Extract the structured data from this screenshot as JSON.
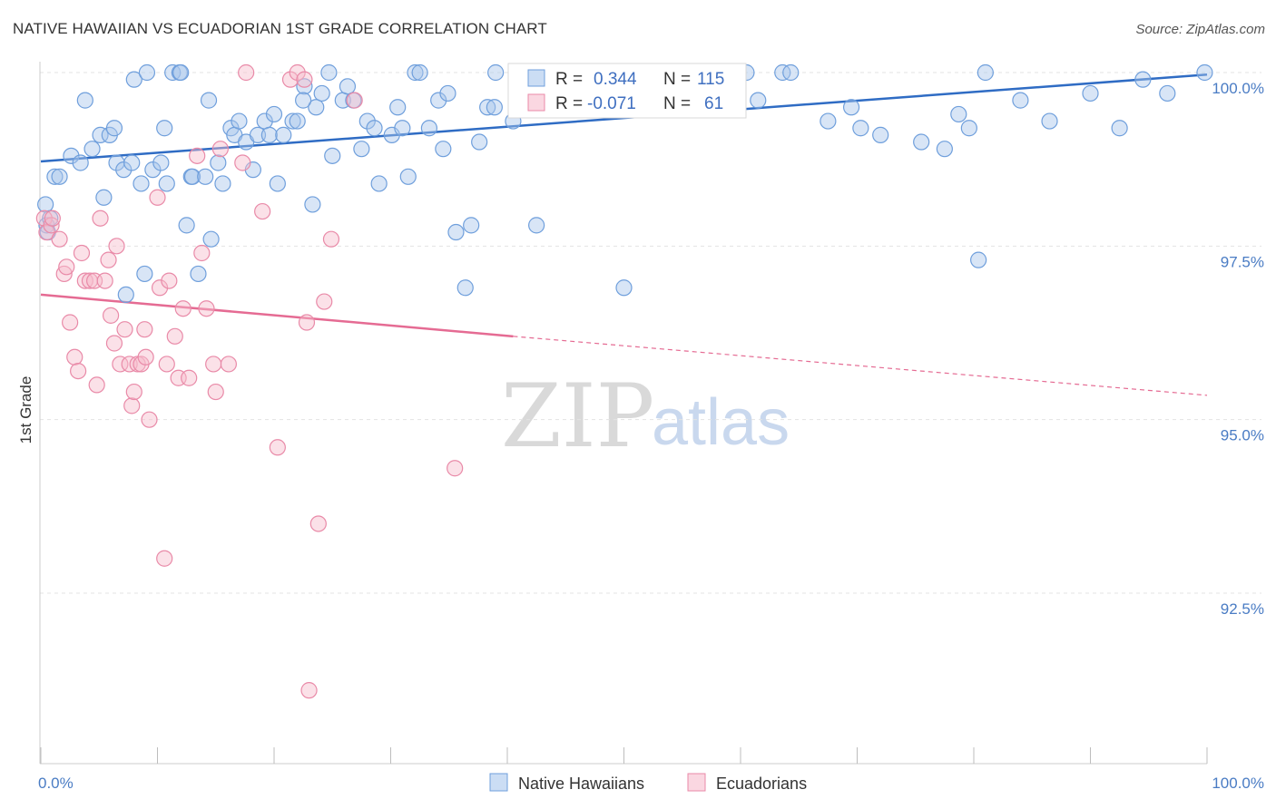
{
  "title": "NATIVE HAWAIIAN VS ECUADORIAN 1ST GRADE CORRELATION CHART",
  "source": "Source: ZipAtlas.com",
  "watermark": {
    "part1": "ZIP",
    "part2": "atlas"
  },
  "colors": {
    "blue": "#a9c6ec",
    "blue_stroke": "#6f9fdc",
    "blue_line": "#2f6cc4",
    "pink": "#f6bccd",
    "pink_stroke": "#e98aa8",
    "pink_line": "#e56b93",
    "tick_text": "#4a7cc4"
  },
  "legend": {
    "row1": {
      "r_label": "R =",
      "r_value": "0.344",
      "n_label": "N =",
      "n_value": "115"
    },
    "row2": {
      "r_label": "R =",
      "r_value": "-0.071",
      "n_label": "N =",
      "n_value": "61"
    }
  },
  "bottom_legend": [
    "Native Hawaiians",
    "Ecuadorians"
  ],
  "chart_data": {
    "type": "scatter",
    "xlabel": "",
    "ylabel": "1st Grade",
    "xlim": [
      0,
      100
    ],
    "ylim": [
      90.2,
      100.4
    ],
    "x_tick_labels": [
      "0.0%",
      "100.0%"
    ],
    "y_ticks": [
      92.5,
      95.0,
      97.5,
      100.0
    ],
    "y_tick_labels": [
      "92.5%",
      "95.0%",
      "97.5%",
      "100.0%"
    ],
    "grid": true,
    "series": [
      {
        "name": "Native Hawaiians",
        "trend": {
          "x": [
            0,
            100
          ],
          "y": [
            98.72,
            99.97
          ]
        },
        "points": [
          [
            0.4,
            98.1
          ],
          [
            0.5,
            97.8
          ],
          [
            0.8,
            97.9
          ],
          [
            1.2,
            98.5
          ],
          [
            1.6,
            98.5
          ],
          [
            2.6,
            98.8
          ],
          [
            3.4,
            98.7
          ],
          [
            3.8,
            99.6
          ],
          [
            4.4,
            98.9
          ],
          [
            5.1,
            99.1
          ],
          [
            5.4,
            98.2
          ],
          [
            5.9,
            99.1
          ],
          [
            6.5,
            98.7
          ],
          [
            7.1,
            98.6
          ],
          [
            7.3,
            96.8
          ],
          [
            7.8,
            98.7
          ],
          [
            8.0,
            99.9
          ],
          [
            8.6,
            98.4
          ],
          [
            8.9,
            97.1
          ],
          [
            9.1,
            100.0
          ],
          [
            9.6,
            98.6
          ],
          [
            10.3,
            98.7
          ],
          [
            10.6,
            99.2
          ],
          [
            10.8,
            98.4
          ],
          [
            11.3,
            100.0
          ],
          [
            11.9,
            100.0
          ],
          [
            12.0,
            100.0
          ],
          [
            12.5,
            97.8
          ],
          [
            12.9,
            98.5
          ],
          [
            13.0,
            98.5
          ],
          [
            13.5,
            97.1
          ],
          [
            14.1,
            98.5
          ],
          [
            14.4,
            99.6
          ],
          [
            14.6,
            97.6
          ],
          [
            15.2,
            98.7
          ],
          [
            15.6,
            98.4
          ],
          [
            16.3,
            99.2
          ],
          [
            16.6,
            99.1
          ],
          [
            17.0,
            99.3
          ],
          [
            17.6,
            99.0
          ],
          [
            18.2,
            98.6
          ],
          [
            18.6,
            99.1
          ],
          [
            19.2,
            99.3
          ],
          [
            19.6,
            99.1
          ],
          [
            20.3,
            98.4
          ],
          [
            20.8,
            99.1
          ],
          [
            21.6,
            99.3
          ],
          [
            22.0,
            99.3
          ],
          [
            22.6,
            99.8
          ],
          [
            23.3,
            98.1
          ],
          [
            23.6,
            99.5
          ],
          [
            24.1,
            99.7
          ],
          [
            24.7,
            100.0
          ],
          [
            25.0,
            98.8
          ],
          [
            25.9,
            99.6
          ],
          [
            26.3,
            99.8
          ],
          [
            26.8,
            99.6
          ],
          [
            27.5,
            98.9
          ],
          [
            28.0,
            99.3
          ],
          [
            28.6,
            99.2
          ],
          [
            29.0,
            98.4
          ],
          [
            30.1,
            99.1
          ],
          [
            30.6,
            99.5
          ],
          [
            31.0,
            99.2
          ],
          [
            31.5,
            98.5
          ],
          [
            32.1,
            100.0
          ],
          [
            32.5,
            100.0
          ],
          [
            33.3,
            99.2
          ],
          [
            34.1,
            99.6
          ],
          [
            34.5,
            98.9
          ],
          [
            34.9,
            99.7
          ],
          [
            35.6,
            97.7
          ],
          [
            36.4,
            96.9
          ],
          [
            36.9,
            97.8
          ],
          [
            37.6,
            99.0
          ],
          [
            38.3,
            99.5
          ],
          [
            38.9,
            99.5
          ],
          [
            39.0,
            100.0
          ],
          [
            40.5,
            99.3
          ],
          [
            41.5,
            99.9
          ],
          [
            42.5,
            97.8
          ],
          [
            43.0,
            100.0
          ],
          [
            44.5,
            99.7
          ],
          [
            46.5,
            100.0
          ],
          [
            47.0,
            99.6
          ],
          [
            50.0,
            96.9
          ],
          [
            51.0,
            100.0
          ],
          [
            53.0,
            100.0
          ],
          [
            55.6,
            100.0
          ],
          [
            57.2,
            100.0
          ],
          [
            60.5,
            100.0
          ],
          [
            61.5,
            99.6
          ],
          [
            63.6,
            100.0
          ],
          [
            64.3,
            100.0
          ],
          [
            67.5,
            99.3
          ],
          [
            69.5,
            99.5
          ],
          [
            70.3,
            99.2
          ],
          [
            72.0,
            99.1
          ],
          [
            75.5,
            99.0
          ],
          [
            77.5,
            98.9
          ],
          [
            78.7,
            99.4
          ],
          [
            79.6,
            99.2
          ],
          [
            80.4,
            97.3
          ],
          [
            81.0,
            100.0
          ],
          [
            84.0,
            99.6
          ],
          [
            86.5,
            99.3
          ],
          [
            90.0,
            99.7
          ],
          [
            92.5,
            99.2
          ],
          [
            94.5,
            99.9
          ],
          [
            96.6,
            99.7
          ],
          [
            99.8,
            100.0
          ],
          [
            0.6,
            97.7
          ],
          [
            6.3,
            99.2
          ],
          [
            20.0,
            99.4
          ],
          [
            22.5,
            99.6
          ]
        ]
      },
      {
        "name": "Ecuadorians",
        "trend": {
          "x": [
            0,
            40.5
          ],
          "y": [
            96.8,
            96.2
          ],
          "dashed_to": {
            "x": 100,
            "y": 95.35
          }
        },
        "points": [
          [
            0.3,
            97.9
          ],
          [
            0.5,
            97.7
          ],
          [
            0.9,
            97.8
          ],
          [
            1.0,
            97.9
          ],
          [
            1.6,
            97.6
          ],
          [
            2.0,
            97.1
          ],
          [
            2.2,
            97.2
          ],
          [
            2.5,
            96.4
          ],
          [
            2.9,
            95.9
          ],
          [
            3.2,
            95.7
          ],
          [
            3.5,
            97.4
          ],
          [
            3.8,
            97.0
          ],
          [
            4.2,
            97.0
          ],
          [
            4.6,
            97.0
          ],
          [
            4.8,
            95.5
          ],
          [
            5.1,
            97.9
          ],
          [
            5.5,
            97.0
          ],
          [
            5.8,
            97.3
          ],
          [
            6.0,
            96.5
          ],
          [
            6.3,
            96.1
          ],
          [
            6.5,
            97.5
          ],
          [
            6.8,
            95.8
          ],
          [
            7.2,
            96.3
          ],
          [
            7.6,
            95.8
          ],
          [
            7.8,
            95.2
          ],
          [
            8.0,
            95.4
          ],
          [
            8.3,
            95.8
          ],
          [
            8.6,
            95.8
          ],
          [
            8.9,
            96.3
          ],
          [
            9.0,
            95.9
          ],
          [
            9.3,
            95.0
          ],
          [
            10.0,
            98.2
          ],
          [
            10.2,
            96.9
          ],
          [
            10.8,
            95.8
          ],
          [
            11.0,
            97.0
          ],
          [
            11.5,
            96.2
          ],
          [
            11.8,
            95.6
          ],
          [
            12.2,
            96.6
          ],
          [
            12.7,
            95.6
          ],
          [
            13.4,
            98.8
          ],
          [
            13.8,
            97.4
          ],
          [
            14.2,
            96.6
          ],
          [
            14.8,
            95.8
          ],
          [
            15.0,
            95.4
          ],
          [
            15.4,
            98.9
          ],
          [
            16.1,
            95.8
          ],
          [
            17.3,
            98.7
          ],
          [
            17.6,
            100.0
          ],
          [
            19.0,
            98.0
          ],
          [
            20.3,
            94.6
          ],
          [
            21.4,
            99.9
          ],
          [
            22.0,
            100.0
          ],
          [
            22.8,
            96.4
          ],
          [
            23.0,
            91.1
          ],
          [
            23.8,
            93.5
          ],
          [
            24.3,
            96.7
          ],
          [
            24.9,
            97.6
          ],
          [
            26.9,
            99.6
          ],
          [
            10.6,
            93.0
          ],
          [
            35.5,
            94.3
          ],
          [
            22.6,
            99.9
          ]
        ]
      }
    ]
  }
}
